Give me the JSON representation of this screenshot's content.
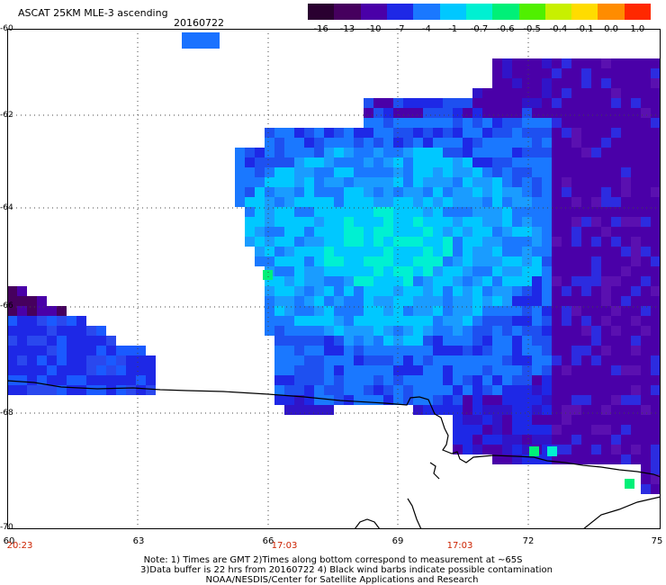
{
  "header": {
    "title": "ASCAT 25KM MLE-3 ascending",
    "date": "20160722",
    "swatch_color": "#1a72ff"
  },
  "colorbar": {
    "labels": [
      "-16",
      "-13",
      "-10",
      "-7",
      "-4",
      "-1",
      "-0.7",
      "-0.6",
      "-0.5",
      "-0.4",
      "-0.1",
      "0.0",
      "1.0"
    ],
    "colors": [
      "#2a0030",
      "#46005e",
      "#4a00a8",
      "#1e28e6",
      "#1a78ff",
      "#00c8ff",
      "#00f0d2",
      "#00f078",
      "#50f000",
      "#c8f000",
      "#ffdc00",
      "#ff8c00",
      "#ff2800"
    ]
  },
  "axes": {
    "lat_labels": [
      "-60",
      "-62",
      "-64",
      "-66",
      "-68",
      "-70"
    ],
    "lon_labels": [
      "60",
      "63",
      "66",
      "69",
      "72",
      "75"
    ],
    "time_labels": [
      "20:23",
      "17:03",
      "17:03"
    ]
  },
  "notes": [
    "Note: 1) Times are GMT 2)Times along bottom correspond to measurement at ~65S",
    "3)Data buffer is 22 hrs from 20160722 4) Black wind barbs indicate possible contamination",
    "NOAA/NESDIS/Center for Satellite Applications and Research"
  ]
}
